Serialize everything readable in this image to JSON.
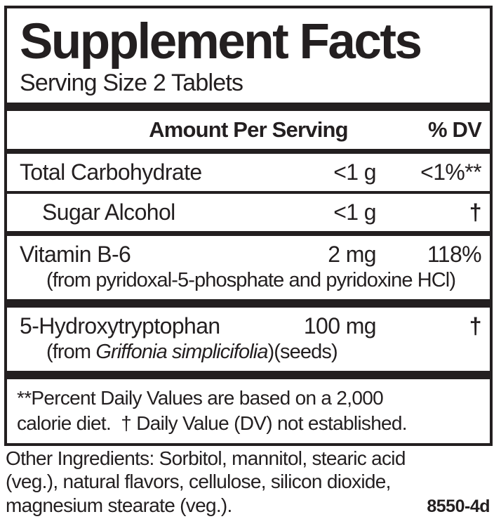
{
  "label": {
    "title": "Supplement Facts",
    "serving_size": "Serving Size 2 Tablets",
    "column_headers": {
      "amount": "Amount Per Serving",
      "dv": "% DV"
    },
    "rows": [
      {
        "name": "Total Carbohydrate",
        "amount": "<1 g",
        "dv": "<1%**"
      },
      {
        "name": "Sugar Alcohol",
        "amount": "<1 g",
        "dv": "†"
      },
      {
        "name": "Vitamin B-6",
        "amount": "2 mg",
        "dv": "118%",
        "subline": "(from pyridoxal-5-phosphate and pyridoxine HCl)"
      },
      {
        "name": "5-Hydroxytryptophan",
        "amount": "100 mg",
        "dv": "†",
        "subline_prefix": "(from ",
        "subline_italic": "Griffonia simplicifolia",
        "subline_suffix": ")(seeds)"
      }
    ],
    "footnote": {
      "line1": "**Percent Daily Values are based on a 2,000",
      "line2": "calorie diet.  † Daily Value (DV) not established."
    },
    "other_ingredients": {
      "line1": "Other Ingredients: Sorbitol, mannitol, stearic acid",
      "line2": "(veg.), natural flavors, cellulose, silicon dioxide,",
      "line3": "magnesium stearate (veg.)."
    },
    "product_code": "8550-4d",
    "colors": {
      "text": "#231f20",
      "background": "#ffffff"
    }
  }
}
